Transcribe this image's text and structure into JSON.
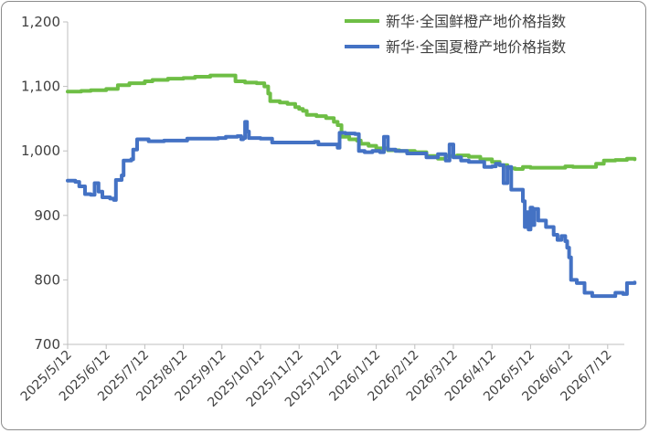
{
  "chart_data": {
    "type": "line",
    "title": "",
    "xlabel": "",
    "ylabel": "",
    "ylim": [
      700,
      1200
    ],
    "yticks": [
      700,
      800,
      900,
      1000,
      1100,
      1200
    ],
    "ytick_labels": [
      "700",
      "800",
      "900",
      "1,000",
      "1,100",
      "1,200"
    ],
    "x_categories": [
      "2025/5/12",
      "2025/6/12",
      "2025/7/12",
      "2025/8/12",
      "2025/9/12",
      "2025/10/12",
      "2025/11/12",
      "2025/12/12",
      "2026/1/12",
      "2026/2/12",
      "2026/3/12",
      "2026/4/12",
      "2026/5/12",
      "2026/6/12",
      "2026/7/12"
    ],
    "legend_position": "top-right",
    "grid": false,
    "series": [
      {
        "name": "新华·全国鲜橙产地价格指数",
        "color": "#6ebe45",
        "points": [
          [
            0.0,
            1092
          ],
          [
            0.35,
            1093
          ],
          [
            0.6,
            1094
          ],
          [
            1.0,
            1096
          ],
          [
            1.3,
            1102
          ],
          [
            1.6,
            1105
          ],
          [
            2.0,
            1108
          ],
          [
            2.2,
            1110
          ],
          [
            2.6,
            1112
          ],
          [
            3.0,
            1113
          ],
          [
            3.3,
            1115
          ],
          [
            3.7,
            1117
          ],
          [
            4.0,
            1117
          ],
          [
            4.2,
            1117
          ],
          [
            4.35,
            1108
          ],
          [
            4.6,
            1106
          ],
          [
            4.9,
            1105
          ],
          [
            5.0,
            1105
          ],
          [
            5.1,
            1100
          ],
          [
            5.2,
            1089
          ],
          [
            5.25,
            1077
          ],
          [
            5.5,
            1075
          ],
          [
            5.7,
            1073
          ],
          [
            5.9,
            1068
          ],
          [
            6.0,
            1065
          ],
          [
            6.1,
            1062
          ],
          [
            6.2,
            1056
          ],
          [
            6.45,
            1054
          ],
          [
            6.7,
            1051
          ],
          [
            6.9,
            1045
          ],
          [
            7.0,
            1040
          ],
          [
            7.1,
            1022
          ],
          [
            7.3,
            1018
          ],
          [
            7.5,
            1016
          ],
          [
            7.6,
            1011
          ],
          [
            7.8,
            1008
          ],
          [
            8.0,
            1004
          ],
          [
            8.3,
            1001
          ],
          [
            8.6,
            1000
          ],
          [
            9.0,
            998
          ],
          [
            9.3,
            992
          ],
          [
            9.6,
            988
          ],
          [
            9.8,
            992
          ],
          [
            10.1,
            993
          ],
          [
            10.4,
            991
          ],
          [
            10.7,
            987
          ],
          [
            11.0,
            983
          ],
          [
            11.2,
            978
          ],
          [
            11.4,
            973
          ],
          [
            11.6,
            972
          ],
          [
            11.8,
            975
          ],
          [
            12.0,
            974
          ],
          [
            12.4,
            974
          ],
          [
            12.7,
            974
          ],
          [
            12.9,
            976
          ],
          [
            13.1,
            975
          ],
          [
            13.4,
            975
          ],
          [
            13.7,
            980
          ],
          [
            13.9,
            985
          ],
          [
            14.2,
            986
          ],
          [
            14.5,
            988
          ],
          [
            14.7,
            987
          ]
        ]
      },
      {
        "name": "新华·全国夏橙产地价格指数",
        "color": "#4472c4",
        "points": [
          [
            0.0,
            954
          ],
          [
            0.2,
            952
          ],
          [
            0.3,
            945
          ],
          [
            0.45,
            933
          ],
          [
            0.6,
            932
          ],
          [
            0.7,
            950
          ],
          [
            0.8,
            937
          ],
          [
            0.9,
            928
          ],
          [
            1.1,
            926
          ],
          [
            1.2,
            924
          ],
          [
            1.25,
            955
          ],
          [
            1.4,
            962
          ],
          [
            1.45,
            985
          ],
          [
            1.65,
            987
          ],
          [
            1.7,
            1002
          ],
          [
            1.8,
            1018
          ],
          [
            2.0,
            1018
          ],
          [
            2.1,
            1015
          ],
          [
            2.5,
            1016
          ],
          [
            3.0,
            1016
          ],
          [
            3.1,
            1019
          ],
          [
            3.5,
            1019
          ],
          [
            3.9,
            1020
          ],
          [
            4.1,
            1022
          ],
          [
            4.4,
            1023
          ],
          [
            4.5,
            1018
          ],
          [
            4.55,
            1020
          ],
          [
            4.6,
            1045
          ],
          [
            4.65,
            1030
          ],
          [
            4.7,
            1020
          ],
          [
            5.0,
            1019
          ],
          [
            5.3,
            1013
          ],
          [
            6.0,
            1013
          ],
          [
            6.4,
            1014
          ],
          [
            6.5,
            1010
          ],
          [
            6.9,
            1010
          ],
          [
            7.0,
            1005
          ],
          [
            7.05,
            1028
          ],
          [
            7.2,
            1027
          ],
          [
            7.45,
            1026
          ],
          [
            7.55,
            1000
          ],
          [
            7.7,
            998
          ],
          [
            7.9,
            1000
          ],
          [
            8.0,
            1000
          ],
          [
            8.1,
            998
          ],
          [
            8.2,
            1022
          ],
          [
            8.3,
            1002
          ],
          [
            8.5,
            1000
          ],
          [
            8.8,
            996
          ],
          [
            9.0,
            996
          ],
          [
            9.3,
            990
          ],
          [
            9.6,
            995
          ],
          [
            9.8,
            985
          ],
          [
            9.9,
            1010
          ],
          [
            10.0,
            990
          ],
          [
            10.2,
            985
          ],
          [
            10.4,
            983
          ],
          [
            10.6,
            983
          ],
          [
            10.8,
            975
          ],
          [
            11.0,
            976
          ],
          [
            11.1,
            980
          ],
          [
            11.2,
            978
          ],
          [
            11.3,
            950
          ],
          [
            11.4,
            975
          ],
          [
            11.5,
            940
          ],
          [
            11.7,
            940
          ],
          [
            11.8,
            922
          ],
          [
            11.85,
            882
          ],
          [
            11.9,
            905
          ],
          [
            11.95,
            878
          ],
          [
            12.0,
            912
          ],
          [
            12.05,
            885
          ],
          [
            12.1,
            910
          ],
          [
            12.2,
            892
          ],
          [
            12.4,
            882
          ],
          [
            12.6,
            870
          ],
          [
            12.7,
            862
          ],
          [
            12.8,
            868
          ],
          [
            12.9,
            860
          ],
          [
            12.95,
            850
          ],
          [
            13.0,
            835
          ],
          [
            13.05,
            800
          ],
          [
            13.2,
            795
          ],
          [
            13.4,
            780
          ],
          [
            13.6,
            775
          ],
          [
            13.8,
            775
          ],
          [
            14.0,
            775
          ],
          [
            14.2,
            780
          ],
          [
            14.4,
            778
          ],
          [
            14.5,
            795
          ],
          [
            14.7,
            796
          ]
        ]
      }
    ]
  }
}
